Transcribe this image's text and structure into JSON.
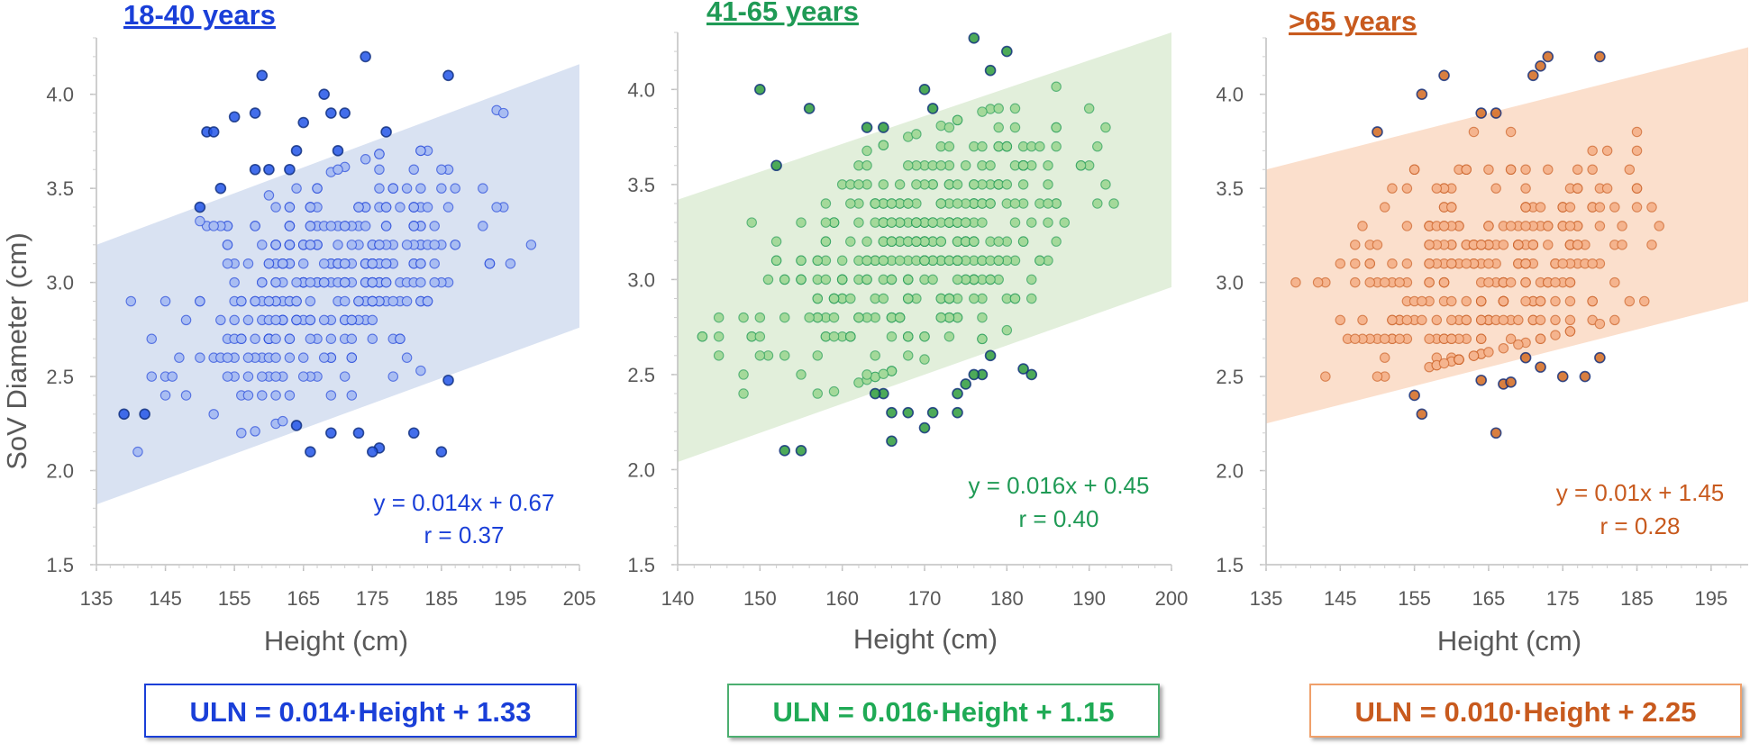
{
  "chart_data": [
    {
      "type": "scatter",
      "title": "18-40 years",
      "xlabel": "Height (cm)",
      "ylabel": "SoV Diameter (cm)",
      "xlim": [
        135,
        205
      ],
      "ylim": [
        1.5,
        4.3
      ],
      "xticks": [
        "135",
        "145",
        "155",
        "165",
        "175",
        "185",
        "195",
        "205"
      ],
      "yticks": [
        "1.5",
        "2.0",
        "2.5",
        "3.0",
        "3.5",
        "4.0"
      ],
      "band": {
        "x": [
          135,
          205
        ],
        "lower": [
          1.82,
          2.76
        ],
        "upper": [
          3.2,
          4.16
        ]
      },
      "equation": "y = 0.014x + 0.67",
      "r": "r = 0.37",
      "uln": "ULN = 0.014·Height + 1.33",
      "colors": {
        "accent": "#1a3fd8",
        "fill": "#a9bdf2",
        "band": "#d9e2f2",
        "outlier": "#2255e8"
      },
      "outliers": [
        [
          150,
          3.4
        ],
        [
          151,
          3.8
        ],
        [
          152,
          3.8
        ],
        [
          153,
          3.5
        ],
        [
          155,
          3.88
        ],
        [
          158,
          3.9
        ],
        [
          158,
          3.6
        ],
        [
          159,
          4.1
        ],
        [
          160,
          3.6
        ],
        [
          163,
          3.6
        ],
        [
          164,
          3.7
        ],
        [
          165,
          3.85
        ],
        [
          168,
          4.0
        ],
        [
          169,
          3.9
        ],
        [
          170,
          3.7
        ],
        [
          171,
          3.9
        ],
        [
          174,
          4.2
        ],
        [
          177,
          3.8
        ],
        [
          186,
          4.1
        ],
        [
          186,
          2.48
        ],
        [
          185,
          2.1
        ],
        [
          181,
          2.2
        ],
        [
          176,
          2.12
        ],
        [
          175,
          2.1
        ],
        [
          173,
          2.2
        ],
        [
          169,
          2.2
        ],
        [
          166,
          2.1
        ],
        [
          164,
          2.24
        ],
        [
          142,
          2.3
        ],
        [
          139,
          2.3
        ]
      ]
    },
    {
      "type": "scatter",
      "title": "41-65 years",
      "xlabel": "Height (cm)",
      "ylabel": "",
      "xlim": [
        140,
        200
      ],
      "ylim": [
        1.5,
        4.3
      ],
      "xticks": [
        "140",
        "150",
        "160",
        "170",
        "180",
        "190",
        "200"
      ],
      "yticks": [
        "1.5",
        "2.0",
        "2.5",
        "3.0",
        "3.5",
        "4.0"
      ],
      "band": {
        "x": [
          140,
          200
        ],
        "lower": [
          2.04,
          2.96
        ],
        "upper": [
          3.42,
          4.3
        ]
      },
      "equation": "y = 0.016x + 0.45",
      "r": "r = 0.40",
      "uln": "ULN = 0.016·Height + 1.15",
      "colors": {
        "accent": "#1f9a55",
        "fill": "#a4d99a",
        "band": "#e2efdb",
        "outlier": "#2e9b3c"
      },
      "outliers": [
        [
          150,
          4.0
        ],
        [
          152,
          3.6
        ],
        [
          156,
          3.9
        ],
        [
          163,
          3.8
        ],
        [
          165,
          3.8
        ],
        [
          170,
          4.0
        ],
        [
          171,
          3.9
        ],
        [
          176,
          4.27
        ],
        [
          178,
          4.1
        ],
        [
          180,
          4.2
        ],
        [
          178,
          2.6
        ],
        [
          177,
          2.5
        ],
        [
          176,
          2.5
        ],
        [
          175,
          2.45
        ],
        [
          174,
          2.4
        ],
        [
          174,
          2.3
        ],
        [
          171,
          2.3
        ],
        [
          170,
          2.22
        ],
        [
          168,
          2.3
        ],
        [
          166,
          2.15
        ],
        [
          166,
          2.3
        ],
        [
          165,
          2.4
        ],
        [
          164,
          2.4
        ],
        [
          155,
          2.1
        ],
        [
          153,
          2.1
        ],
        [
          182,
          2.53
        ],
        [
          183,
          2.5
        ]
      ]
    },
    {
      "type": "scatter",
      "title": ">65 years",
      "xlabel": "Height (cm)",
      "ylabel": "",
      "xlim": [
        135,
        200
      ],
      "ylim": [
        1.5,
        4.3
      ],
      "xticks": [
        "135",
        "145",
        "155",
        "165",
        "175",
        "185",
        "195"
      ],
      "yticks": [
        "1.5",
        "2.0",
        "2.5",
        "3.0",
        "3.5",
        "4.0"
      ],
      "band": {
        "x": [
          135,
          200
        ],
        "lower": [
          2.25,
          2.9
        ],
        "upper": [
          3.6,
          4.25
        ]
      },
      "equation": "y = 0.01x + 1.45",
      "r": "r = 0.28",
      "uln": "ULN = 0.010·Height + 2.25",
      "colors": {
        "accent": "#c85a1e",
        "fill": "#f5b48e",
        "band": "#fbdfcc",
        "outlier": "#d2691e"
      },
      "outliers": [
        [
          150,
          3.8
        ],
        [
          156,
          4.0
        ],
        [
          159,
          4.1
        ],
        [
          164,
          3.9
        ],
        [
          166,
          3.9
        ],
        [
          172,
          4.15
        ],
        [
          173,
          4.2
        ],
        [
          171,
          4.1
        ],
        [
          180,
          4.2
        ],
        [
          167,
          2.46
        ],
        [
          168,
          2.47
        ],
        [
          166,
          2.2
        ],
        [
          164,
          2.48
        ],
        [
          156,
          2.3
        ],
        [
          155,
          2.4
        ],
        [
          170,
          2.6
        ],
        [
          172,
          2.55
        ],
        [
          175,
          2.5
        ],
        [
          178,
          2.5
        ],
        [
          180,
          2.6
        ]
      ]
    }
  ]
}
